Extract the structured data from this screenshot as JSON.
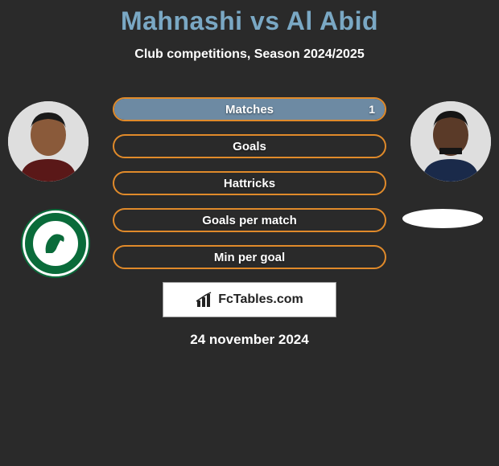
{
  "title": "Mahnashi vs Al Abid",
  "title_color": "#7aa8c4",
  "subtitle": "Club competitions, Season 2024/2025",
  "date": "24 november 2024",
  "brand": "FcTables.com",
  "background_color": "#2a2a2a",
  "bar_border_color": "#e08a2a",
  "bar_fill_color": "#6d8aa3",
  "players": {
    "left": {
      "skin": "#8a5a3a",
      "hair": "#1a1a1a",
      "shirt": "#5a1818"
    },
    "right": {
      "skin": "#5a3a28",
      "hair": "#151515",
      "shirt": "#1a2a4a"
    }
  },
  "stats": [
    {
      "label": "Matches",
      "left_pct": 50,
      "right_pct": 50,
      "right_value": "1"
    },
    {
      "label": "Goals",
      "left_pct": 0,
      "right_pct": 0
    },
    {
      "label": "Hattricks",
      "left_pct": 0,
      "right_pct": 0
    },
    {
      "label": "Goals per match",
      "left_pct": 0,
      "right_pct": 0
    },
    {
      "label": "Min per goal",
      "left_pct": 0,
      "right_pct": 0
    }
  ]
}
